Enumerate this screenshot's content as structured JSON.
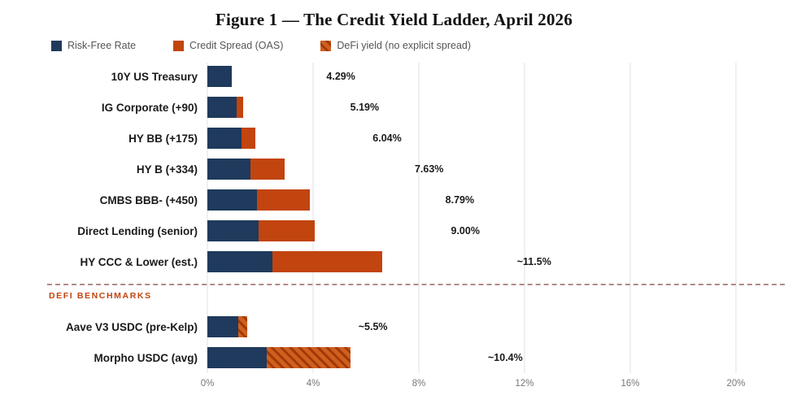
{
  "title": "Figure 1 — The Credit Yield Ladder, April 2026",
  "legend": {
    "items": [
      {
        "label": "Risk-Free Rate",
        "type": "solid",
        "color": "#1f3a5c"
      },
      {
        "label": "Credit Spread (OAS)",
        "type": "solid",
        "color": "#c2440e"
      },
      {
        "label": "DeFi yield (no explicit spread)",
        "type": "hatched",
        "color": "#d05f1e"
      }
    ]
  },
  "section_divider": {
    "label": "DEFI BENCHMARKS"
  },
  "chart_data": {
    "type": "bar",
    "orientation": "horizontal",
    "stacked": true,
    "title": "Figure 1 — The Credit Yield Ladder, April 2026",
    "xlabel": "",
    "ylabel": "",
    "xlim": [
      0,
      20
    ],
    "grid": true,
    "legend_position": "top-left",
    "x_ticks": [
      {
        "label": "0%",
        "value": 0
      },
      {
        "label": "4%",
        "value": 4
      },
      {
        "label": "8%",
        "value": 8
      },
      {
        "label": "12%",
        "value": 12
      },
      {
        "label": "16%",
        "value": 16
      },
      {
        "label": "20%",
        "value": 20
      }
    ],
    "series_names": [
      "Risk-Free Rate",
      "Credit Spread (OAS)",
      "DeFi yield (no explicit spread)"
    ],
    "bars": [
      {
        "category": "10Y US Treasury",
        "group": "tradfi",
        "risk_free": 4.29,
        "spread": 0,
        "spread_type": "none",
        "total": 4.29,
        "value_label": "4.29%"
      },
      {
        "category": "IG Corporate (+90)",
        "group": "tradfi",
        "risk_free": 4.29,
        "spread": 0.9,
        "spread_type": "credit",
        "total": 5.19,
        "value_label": "5.19%"
      },
      {
        "category": "HY BB (+175)",
        "group": "tradfi",
        "risk_free": 4.29,
        "spread": 1.75,
        "spread_type": "credit",
        "total": 6.04,
        "value_label": "6.04%"
      },
      {
        "category": "HY B (+334)",
        "group": "tradfi",
        "risk_free": 4.29,
        "spread": 3.34,
        "spread_type": "credit",
        "total": 7.63,
        "value_label": "7.63%"
      },
      {
        "category": "CMBS BBB- (+450)",
        "group": "tradfi",
        "risk_free": 4.29,
        "spread": 4.5,
        "spread_type": "credit",
        "total": 8.79,
        "value_label": "8.79%"
      },
      {
        "category": "Direct Lending (senior)",
        "group": "tradfi",
        "risk_free": 4.29,
        "spread": 4.71,
        "spread_type": "credit",
        "total": 9.0,
        "value_label": "9.00%"
      },
      {
        "category": "HY CCC & Lower (est.)",
        "group": "tradfi",
        "risk_free": 4.29,
        "spread": 7.21,
        "spread_type": "credit",
        "total": 11.5,
        "value_label": "~11.5%"
      },
      {
        "category": "Aave V3 USDC (pre-Kelp)",
        "group": "defi",
        "risk_free": 4.29,
        "spread": 1.21,
        "spread_type": "defi",
        "total": 5.5,
        "value_label": "~5.5%"
      },
      {
        "category": "Morpho USDC (avg)",
        "group": "defi",
        "risk_free": 4.29,
        "spread": 6.11,
        "spread_type": "defi",
        "total": 10.4,
        "value_label": "~10.4%"
      }
    ]
  },
  "colors": {
    "risk_free": "#1f3a5c",
    "credit_spread": "#c2440e",
    "defi_base": "#d05f1e",
    "defi_stripe": "#a03a08",
    "grid": "#e0e0e0",
    "divider": "#b08a8a",
    "divider_label": "#c2440e",
    "axis_text": "#777777",
    "value_text": "#1a1a1a"
  }
}
